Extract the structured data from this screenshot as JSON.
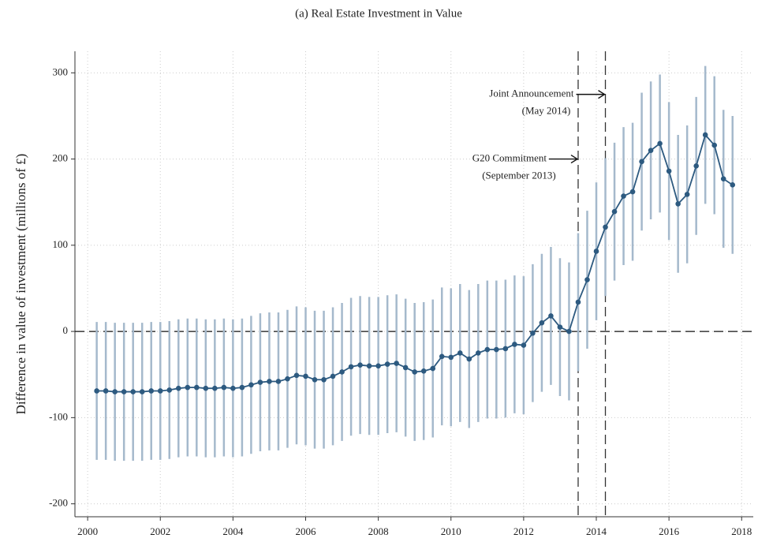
{
  "chart_data": {
    "type": "line",
    "title": "(a) Real Estate Investment in Value",
    "y_label": "Difference in value of investment (millions of £)",
    "x": [
      2000.25,
      2000.5,
      2000.75,
      2001,
      2001.25,
      2001.5,
      2001.75,
      2002,
      2002.25,
      2002.5,
      2002.75,
      2003,
      2003.25,
      2003.5,
      2003.75,
      2004,
      2004.25,
      2004.5,
      2004.75,
      2005,
      2005.25,
      2005.5,
      2005.75,
      2006,
      2006.25,
      2006.5,
      2006.75,
      2007,
      2007.25,
      2007.5,
      2007.75,
      2008,
      2008.25,
      2008.5,
      2008.75,
      2009,
      2009.25,
      2009.5,
      2009.75,
      2010,
      2010.25,
      2010.5,
      2010.75,
      2011,
      2011.25,
      2011.5,
      2011.75,
      2012,
      2012.25,
      2012.5,
      2012.75,
      2013,
      2013.25,
      2013.5,
      2013.75,
      2014,
      2014.25,
      2014.5,
      2014.75,
      2015,
      2015.25,
      2015.5,
      2015.75,
      2016,
      2016.25,
      2016.5,
      2016.75,
      2017,
      2017.25,
      2017.5,
      2017.75
    ],
    "series": [
      {
        "color": "#2d5a80",
        "error_color": "#a5b9cc",
        "values": [
          -69,
          -69,
          -70,
          -70,
          -70,
          -70,
          -69,
          -69,
          -68,
          -66,
          -65,
          -65,
          -66,
          -66,
          -65,
          -66,
          -65,
          -62,
          -59,
          -58,
          -58,
          -55,
          -51,
          -52,
          -56,
          -56,
          -52,
          -47,
          -41,
          -39,
          -40,
          -40,
          -38,
          -37,
          -42,
          -47,
          -46,
          -43,
          -29,
          -30,
          -25,
          -32,
          -25,
          -21,
          -21,
          -20,
          -15,
          -16,
          -2,
          10,
          18,
          5,
          0,
          34,
          60,
          93,
          121,
          139,
          157,
          162,
          197,
          210,
          218,
          186,
          148,
          159,
          192,
          228,
          216,
          177,
          170
        ],
        "errors": [
          80,
          80,
          80,
          80,
          80,
          80,
          80,
          80,
          80,
          80,
          80,
          80,
          80,
          80,
          80,
          80,
          80,
          80,
          80,
          80,
          80,
          80,
          80,
          80,
          80,
          80,
          80,
          80,
          80,
          80,
          80,
          80,
          80,
          80,
          80,
          80,
          80,
          80,
          80,
          80,
          80,
          80,
          80,
          80,
          80,
          80,
          80,
          80,
          80,
          80,
          80,
          80,
          80,
          80,
          80,
          80,
          80,
          80,
          80,
          80,
          80,
          80,
          80,
          80,
          80,
          80,
          80,
          80,
          80,
          80,
          80
        ]
      }
    ],
    "xlim": [
      1999.65,
      2018.32
    ],
    "ylim": [
      -215,
      325
    ],
    "xticks": [
      2000,
      2002,
      2004,
      2006,
      2008,
      2010,
      2012,
      2014,
      2016,
      2018
    ],
    "yticks": [
      -200,
      -100,
      0,
      100,
      200,
      300
    ],
    "grid": true,
    "hline": 0,
    "vlines": [
      2013.5,
      2014.25
    ],
    "annotations": [
      {
        "lines": [
          "Joint Announcement",
          "(May 2014)"
        ],
        "x": 2014.25,
        "y": 275
      },
      {
        "lines": [
          "G20 Commitment",
          "(September 2013)"
        ],
        "x": 2013.5,
        "y": 200
      }
    ]
  }
}
